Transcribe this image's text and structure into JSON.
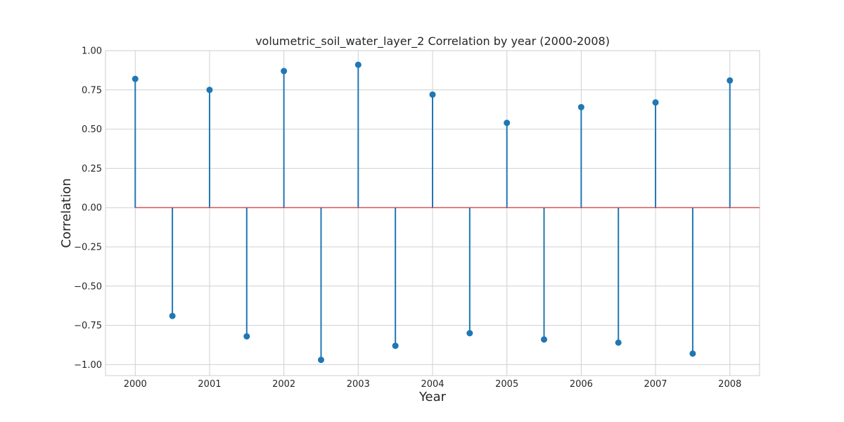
{
  "chart_data": {
    "type": "stem",
    "title": "volumetric_soil_water_layer_2 Correlation by year (2000-2008)",
    "xlabel": "Year",
    "ylabel": "Correlation",
    "x": [
      2000,
      2000.5,
      2001,
      2001.5,
      2002,
      2002.5,
      2003,
      2003.5,
      2004,
      2004.5,
      2005,
      2005.5,
      2006,
      2006.5,
      2007,
      2007.5,
      2008
    ],
    "values": [
      0.82,
      -0.69,
      0.75,
      -0.82,
      0.87,
      -0.97,
      0.91,
      -0.88,
      0.72,
      -0.8,
      0.54,
      -0.84,
      0.64,
      -0.86,
      0.67,
      -0.93,
      0.81
    ],
    "xlim": [
      1999.6,
      2008.4
    ],
    "ylim": [
      -1.07,
      1.0
    ],
    "xticks": [
      2000,
      2001,
      2002,
      2003,
      2004,
      2005,
      2006,
      2007,
      2008
    ],
    "xtick_labels": [
      "2000",
      "2001",
      "2002",
      "2003",
      "2004",
      "2005",
      "2006",
      "2007",
      "2008"
    ],
    "yticks": [
      1.0,
      0.75,
      0.5,
      0.25,
      0.0,
      -0.25,
      -0.5,
      -0.75,
      -1.0
    ],
    "ytick_labels": [
      "1.00",
      "0.75",
      "0.50",
      "0.25",
      "0.00",
      "−0.25",
      "−0.50",
      "−0.75",
      "−1.00"
    ],
    "baseline": 0.0,
    "grid": true,
    "colors": {
      "stem": "#1f77b4",
      "marker": "#1f77b4",
      "baseline": "#d62728"
    }
  }
}
